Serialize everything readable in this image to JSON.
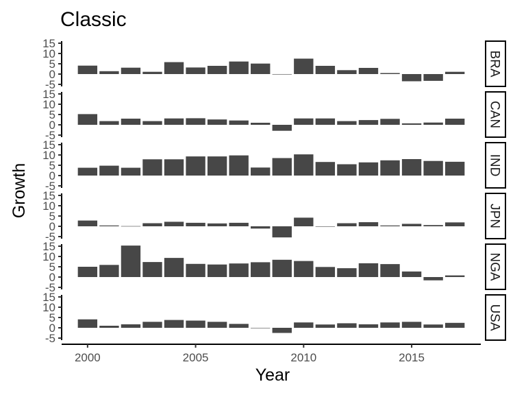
{
  "chart_data": {
    "type": "bar",
    "title": "Classic",
    "xlabel": "Year",
    "ylabel": "Growth",
    "grid": false,
    "facet_strip_position": "right",
    "x": [
      2000,
      2001,
      2002,
      2003,
      2004,
      2005,
      2006,
      2007,
      2008,
      2009,
      2010,
      2011,
      2012,
      2013,
      2014,
      2015,
      2016,
      2017
    ],
    "xlim": [
      1998.8,
      2018.2
    ],
    "xticks": [
      2000,
      2005,
      2010,
      2015
    ],
    "ylim": [
      -6,
      16
    ],
    "yticks": [
      -5,
      0,
      5,
      10,
      15
    ],
    "series": [
      {
        "name": "BRA",
        "values": [
          4.1,
          1.4,
          3.1,
          1.1,
          5.8,
          3.2,
          4.0,
          6.1,
          5.1,
          -0.1,
          7.5,
          4.0,
          1.9,
          3.0,
          0.5,
          -3.5,
          -3.3,
          1.1
        ]
      },
      {
        "name": "CAN",
        "values": [
          5.2,
          1.8,
          3.0,
          1.8,
          3.1,
          3.2,
          2.6,
          2.1,
          1.0,
          -2.9,
          3.1,
          3.1,
          1.8,
          2.3,
          2.9,
          0.7,
          1.1,
          3.0
        ]
      },
      {
        "name": "IND",
        "values": [
          3.8,
          4.8,
          3.8,
          7.9,
          7.9,
          9.3,
          9.3,
          9.8,
          3.9,
          8.5,
          10.3,
          6.6,
          5.5,
          6.4,
          7.4,
          8.0,
          7.1,
          6.7
        ]
      },
      {
        "name": "JPN",
        "values": [
          2.8,
          0.4,
          0.1,
          1.5,
          2.2,
          1.7,
          1.4,
          1.7,
          -1.1,
          -5.4,
          4.2,
          -0.1,
          1.5,
          2.0,
          0.4,
          1.2,
          0.6,
          1.9
        ]
      },
      {
        "name": "NGA",
        "values": [
          5.0,
          5.9,
          15.3,
          7.3,
          9.3,
          6.4,
          6.1,
          6.6,
          7.2,
          8.4,
          7.8,
          4.9,
          4.3,
          6.7,
          6.3,
          2.7,
          -1.6,
          0.8
        ]
      },
      {
        "name": "USA",
        "values": [
          4.1,
          1.0,
          1.7,
          2.9,
          3.8,
          3.5,
          2.9,
          1.9,
          -0.1,
          -2.5,
          2.6,
          1.6,
          2.2,
          1.7,
          2.6,
          2.9,
          1.6,
          2.4
        ]
      }
    ]
  }
}
